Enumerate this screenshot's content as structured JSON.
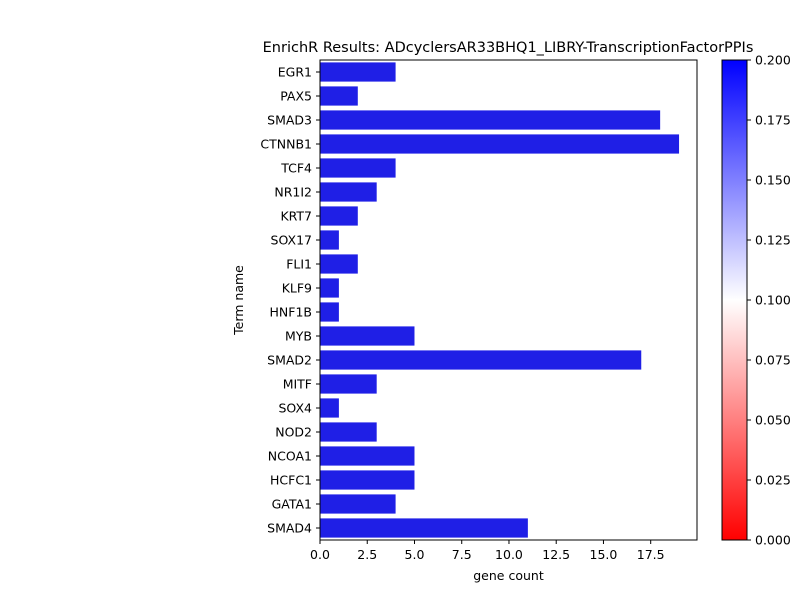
{
  "chart_data": {
    "type": "bar",
    "orientation": "horizontal",
    "title": "EnrichR Results: ADcyclersAR33BHQ1_LIBRY-TranscriptionFactorPPIs",
    "xlabel": "gene count",
    "ylabel": "Term name",
    "categories": [
      "EGR1",
      "PAX5",
      "SMAD3",
      "CTNNB1",
      "TCF4",
      "NR1I2",
      "KRT7",
      "SOX17",
      "FLI1",
      "KLF9",
      "HNF1B",
      "MYB",
      "SMAD2",
      "MITF",
      "SOX4",
      "NOD2",
      "NCOA1",
      "HCFC1",
      "GATA1",
      "SMAD4"
    ],
    "values": [
      4,
      2,
      18,
      19,
      4,
      3,
      2,
      1,
      2,
      1,
      1,
      5,
      17,
      3,
      1,
      3,
      5,
      5,
      4,
      11
    ],
    "xlim": [
      0,
      19.95
    ],
    "xticks": [
      0,
      2.5,
      5,
      7.5,
      10,
      12.5,
      15,
      17.5
    ],
    "xtick_labels": [
      "0.0",
      "2.5",
      "5.0",
      "7.5",
      "10.0",
      "12.5",
      "15.0",
      "17.5"
    ],
    "bar_color": "#1f1fe6",
    "colorbar": {
      "range": [
        0.0,
        0.2
      ],
      "ticks": [
        0.0,
        0.025,
        0.05,
        0.075,
        0.1,
        0.125,
        0.15,
        0.175,
        0.2
      ],
      "tick_labels": [
        "0.000",
        "0.025",
        "0.050",
        "0.075",
        "0.100",
        "0.125",
        "0.150",
        "0.175",
        "0.200"
      ],
      "colors": {
        "low": "#ff0000",
        "mid": "#ffffff",
        "high": "#0000ff"
      }
    },
    "grid": false
  }
}
